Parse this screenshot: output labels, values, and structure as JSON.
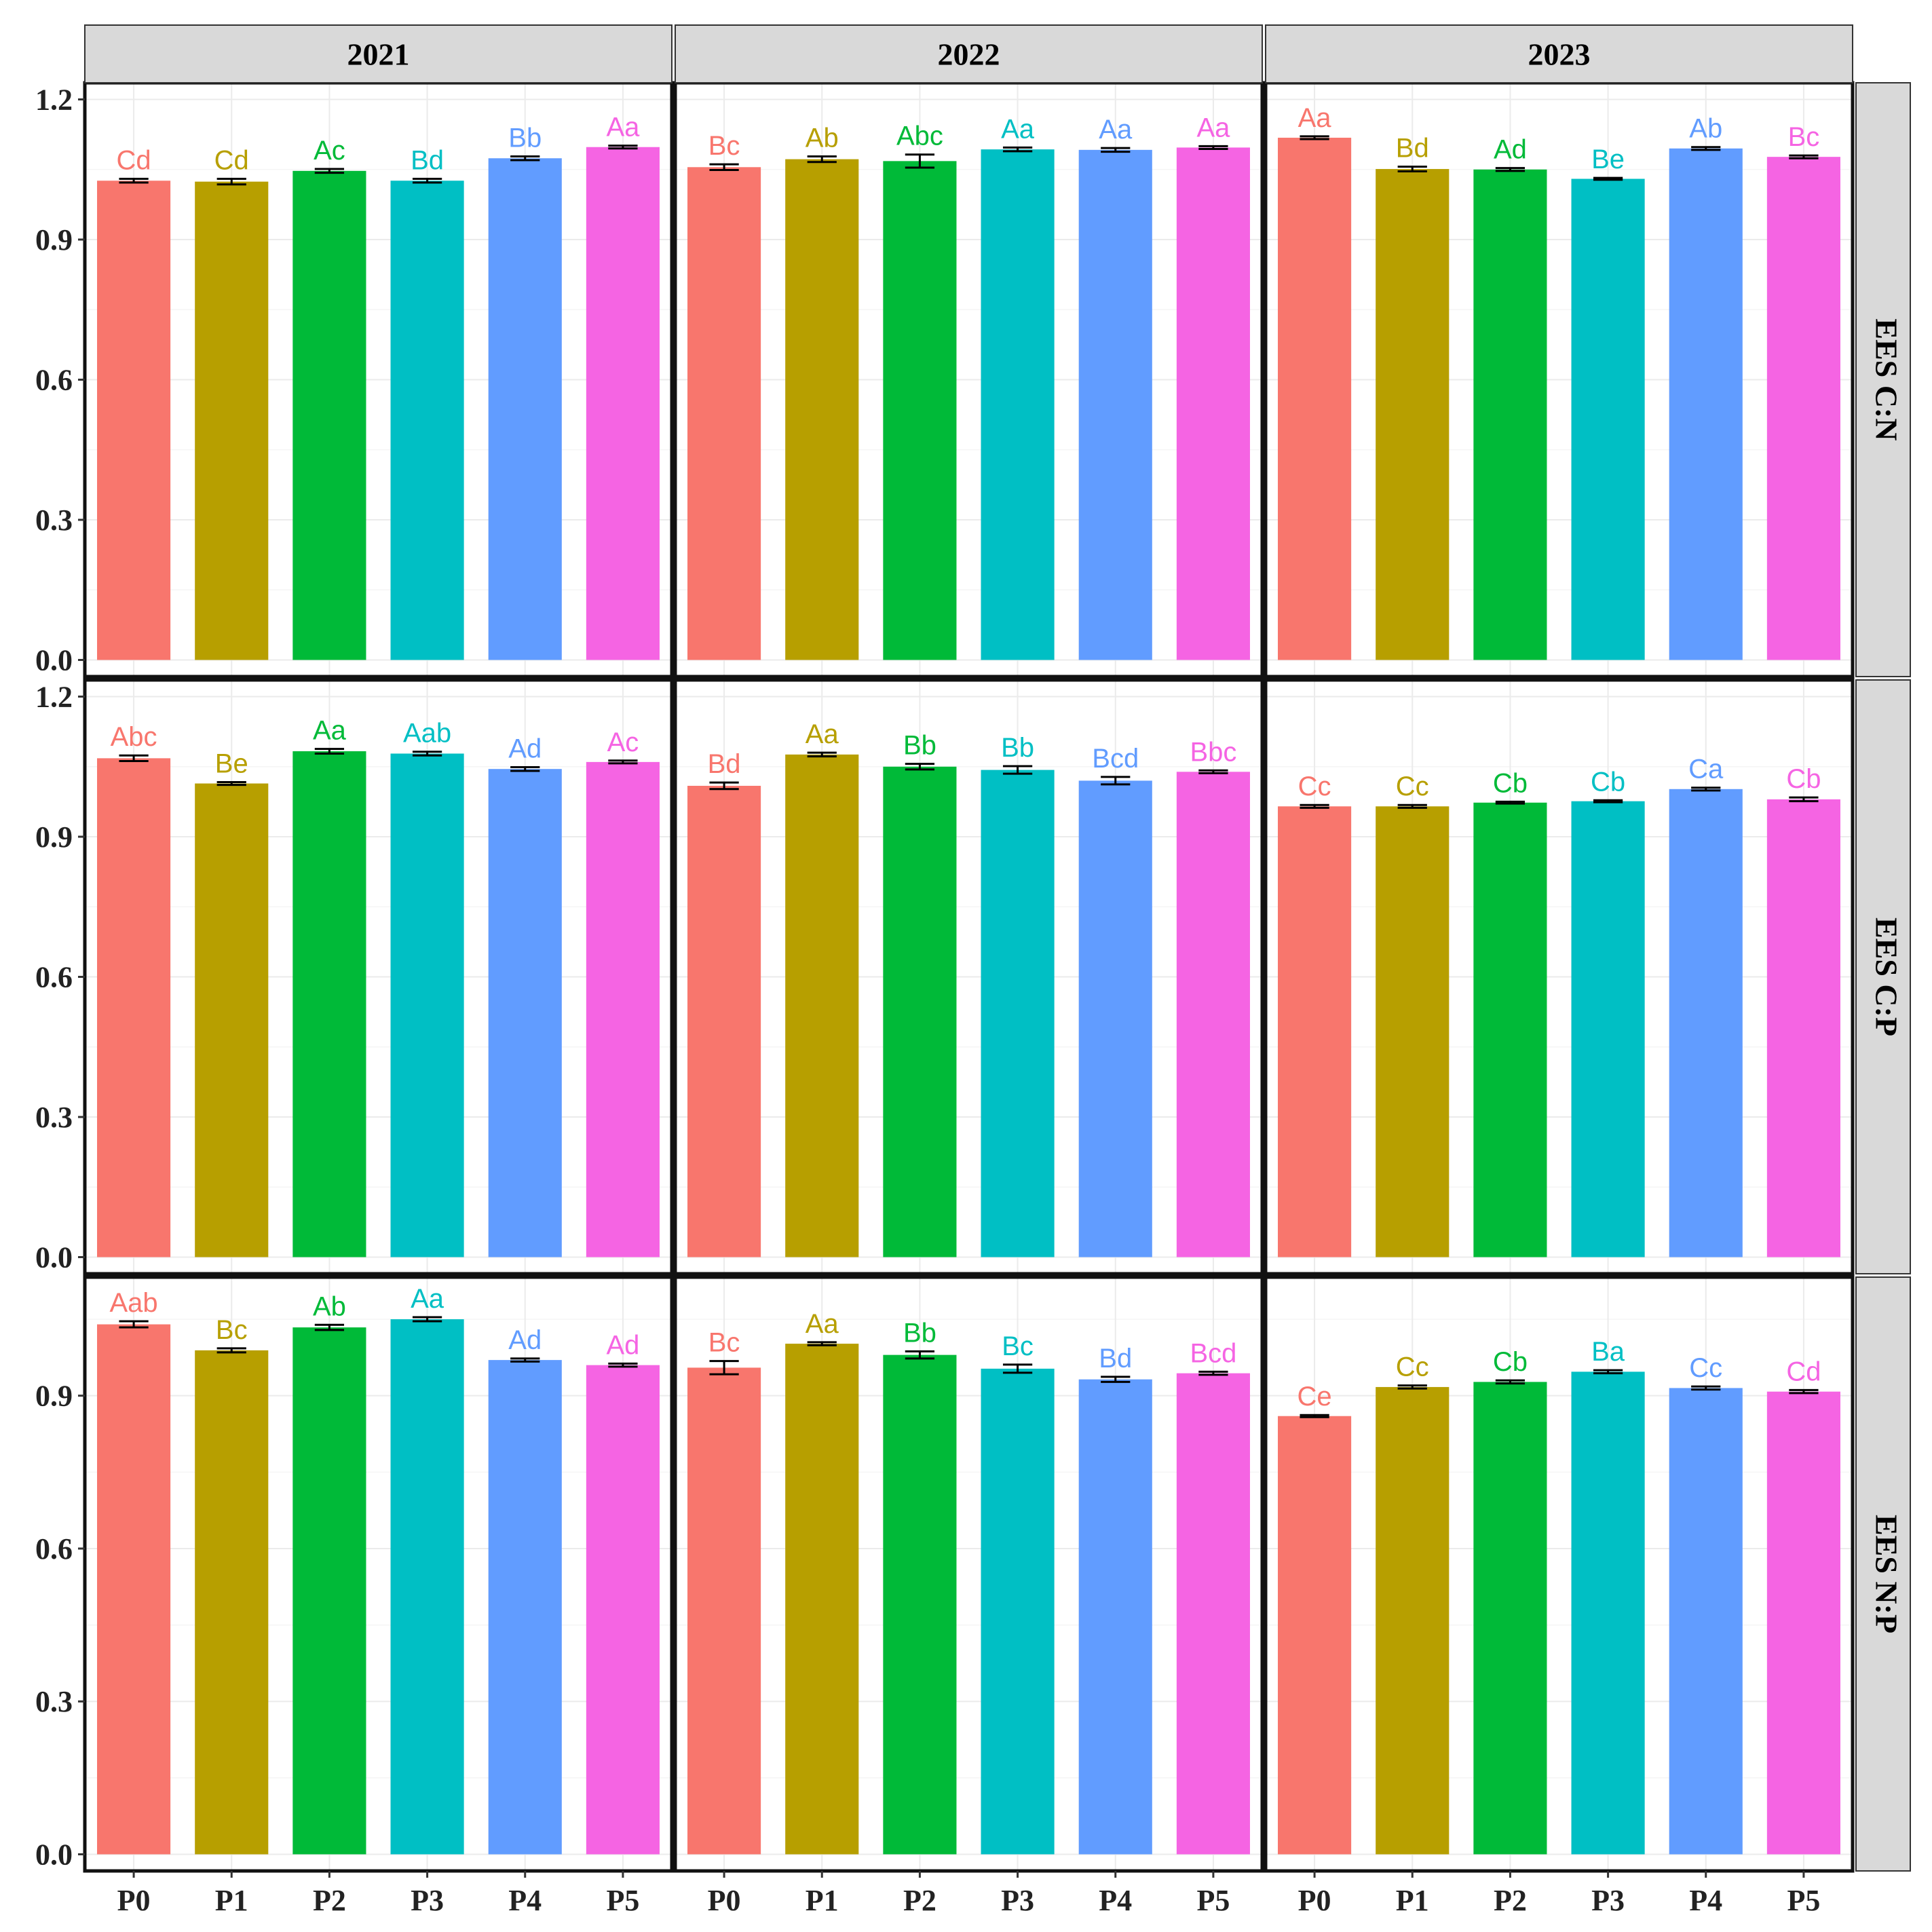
{
  "chart_data": {
    "type": "bar",
    "layout": "facet-grid",
    "categories": [
      "P0",
      "P1",
      "P2",
      "P3",
      "P4",
      "P5"
    ],
    "colors": [
      "#F8766D",
      "#B79F00",
      "#00BA38",
      "#00BFC4",
      "#619CFF",
      "#F564E3"
    ],
    "columns": [
      "2021",
      "2022",
      "2023"
    ],
    "rows": [
      {
        "label": "EES C:N",
        "ylim": [
          0,
          1.2
        ],
        "ticks": [
          "0.0",
          "0.3",
          "0.6",
          "0.9",
          "1.2"
        ],
        "tick_values": [
          0,
          0.3,
          0.6,
          0.9,
          1.2
        ],
        "panels": [
          {
            "values": [
              1.026,
              1.024,
              1.047,
              1.026,
              1.074,
              1.098
            ],
            "errors": [
              0.004,
              0.006,
              0.004,
              0.004,
              0.004,
              0.003
            ],
            "labels": [
              "Cd",
              "Cd",
              "Ac",
              "Bd",
              "Bb",
              "Aa"
            ]
          },
          {
            "values": [
              1.055,
              1.072,
              1.068,
              1.093,
              1.092,
              1.097
            ],
            "errors": [
              0.006,
              0.006,
              0.014,
              0.004,
              0.004,
              0.003
            ],
            "labels": [
              "Bc",
              "Ab",
              "Abc",
              "Aa",
              "Aa",
              "Aa"
            ]
          },
          {
            "values": [
              1.118,
              1.051,
              1.05,
              1.03,
              1.095,
              1.077
            ],
            "errors": [
              0.003,
              0.005,
              0.003,
              0.002,
              0.003,
              0.003
            ],
            "labels": [
              "Aa",
              "Bd",
              "Ad",
              "Be",
              "Ab",
              "Bc"
            ]
          }
        ]
      },
      {
        "label": "EES C:P",
        "ylim": [
          0,
          1.2
        ],
        "ticks": [
          "0.0",
          "0.3",
          "0.6",
          "0.9",
          "1.2"
        ],
        "tick_values": [
          0,
          0.3,
          0.6,
          0.9,
          1.2
        ],
        "panels": [
          {
            "values": [
              1.068,
              1.014,
              1.083,
              1.078,
              1.045,
              1.06
            ],
            "errors": [
              0.006,
              0.003,
              0.005,
              0.004,
              0.004,
              0.003
            ],
            "labels": [
              "Abc",
              "Be",
              "Aa",
              "Aab",
              "Ad",
              "Ac"
            ]
          },
          {
            "values": [
              1.009,
              1.076,
              1.05,
              1.043,
              1.02,
              1.039
            ],
            "errors": [
              0.007,
              0.004,
              0.006,
              0.008,
              0.008,
              0.003
            ],
            "labels": [
              "Bd",
              "Aa",
              "Bb",
              "Bb",
              "Bcd",
              "Bbc"
            ]
          },
          {
            "values": [
              0.965,
              0.965,
              0.973,
              0.976,
              1.002,
              0.98
            ],
            "errors": [
              0.003,
              0.003,
              0.002,
              0.002,
              0.003,
              0.004
            ],
            "labels": [
              "Cc",
              "Cc",
              "Cb",
              "Cb",
              "Ca",
              "Cb"
            ]
          }
        ]
      },
      {
        "label": "EES N:P",
        "ylim": [
          0,
          1.1
        ],
        "ticks": [
          "0.0",
          "0.3",
          "0.6",
          "0.9"
        ],
        "tick_values": [
          0,
          0.3,
          0.6,
          0.9
        ],
        "panels": [
          {
            "values": [
              1.04,
              0.989,
              1.034,
              1.05,
              0.97,
              0.96
            ],
            "errors": [
              0.006,
              0.004,
              0.005,
              0.004,
              0.003,
              0.003
            ],
            "labels": [
              "Aab",
              "Bc",
              "Ab",
              "Aa",
              "Ad",
              "Ad"
            ]
          },
          {
            "values": [
              0.955,
              1.002,
              0.98,
              0.953,
              0.932,
              0.944
            ],
            "errors": [
              0.013,
              0.003,
              0.007,
              0.008,
              0.005,
              0.003
            ],
            "labels": [
              "Bc",
              "Aa",
              "Bb",
              "Bc",
              "Bd",
              "Bcd"
            ]
          },
          {
            "values": [
              0.86,
              0.917,
              0.927,
              0.947,
              0.915,
              0.908
            ],
            "errors": [
              0.002,
              0.003,
              0.003,
              0.003,
              0.003,
              0.003
            ],
            "labels": [
              "Ce",
              "Cc",
              "Cb",
              "Ba",
              "Cc",
              "Cd"
            ]
          }
        ]
      }
    ]
  }
}
